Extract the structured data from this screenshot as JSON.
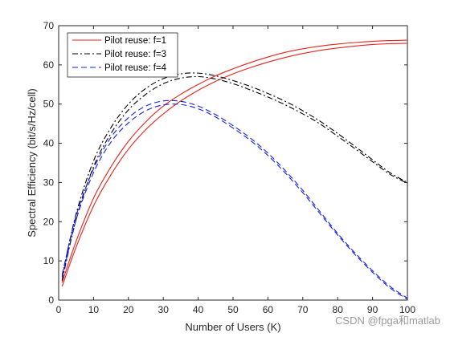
{
  "chart_data": {
    "type": "line",
    "title": "",
    "xlabel": "Number of Users (K)",
    "ylabel": "Spectral Efficiency (bit/s/Hz/cell)",
    "xlim": [
      0,
      100
    ],
    "ylim": [
      0,
      70
    ],
    "xticks": [
      0,
      10,
      20,
      30,
      40,
      50,
      60,
      70,
      80,
      90,
      100
    ],
    "yticks": [
      0,
      10,
      20,
      30,
      40,
      50,
      60,
      70
    ],
    "grid": false,
    "legend_position": "top-left",
    "x": [
      1,
      5,
      10,
      15,
      20,
      25,
      30,
      35,
      40,
      45,
      50,
      55,
      60,
      65,
      70,
      75,
      80,
      85,
      90,
      95,
      100
    ],
    "series": [
      {
        "name": "Pilot reuse: f=1",
        "color": "#e8221c",
        "dash": "solid",
        "values_upper": [
          4.5,
          15,
          26,
          34,
          40.5,
          45.5,
          49.5,
          52.5,
          55,
          57.2,
          59,
          60.6,
          62,
          63.2,
          64.1,
          64.8,
          65.3,
          65.7,
          66,
          66.2,
          66.3
        ],
        "values_lower": [
          3.5,
          13.5,
          24,
          32,
          38.5,
          43.5,
          47.5,
          50.8,
          53.5,
          55.8,
          57.7,
          59.3,
          60.7,
          61.9,
          62.9,
          63.7,
          64.3,
          64.8,
          65.2,
          65.4,
          65.5
        ]
      },
      {
        "name": "Pilot reuse: f=3",
        "color": "#000000",
        "dash": "dashdot",
        "values_upper": [
          6,
          22,
          35.5,
          44,
          50,
          54,
          56.5,
          57.7,
          57.9,
          57.2,
          56,
          54.5,
          52.7,
          50.7,
          48.3,
          45.6,
          42.5,
          39.2,
          35.8,
          32.5,
          30
        ],
        "values_lower": [
          5,
          20.5,
          34,
          42.5,
          48.5,
          52.5,
          55.2,
          56.6,
          57,
          56.4,
          55.2,
          53.6,
          51.8,
          49.8,
          47.5,
          44.9,
          41.8,
          38.6,
          35.3,
          32.1,
          29.8
        ]
      },
      {
        "name": "Pilot reuse: f=4",
        "color": "#1520e6",
        "dash": "dashed",
        "values_upper": [
          6.5,
          21.5,
          33.5,
          41.5,
          46.5,
          49.5,
          50.8,
          50.7,
          49.5,
          47.3,
          44.5,
          41.3,
          37.5,
          33,
          28,
          22.5,
          17,
          12,
          7.5,
          3.5,
          0.5
        ],
        "values_lower": [
          5.5,
          20.5,
          32.5,
          40.3,
          45.2,
          48.3,
          49.8,
          49.9,
          48.8,
          46.7,
          43.9,
          40.7,
          36.9,
          32.4,
          27.4,
          22,
          16.6,
          11.6,
          7.1,
          3.1,
          0.2
        ]
      }
    ]
  },
  "watermark": "CSDN @fpga和matlab"
}
